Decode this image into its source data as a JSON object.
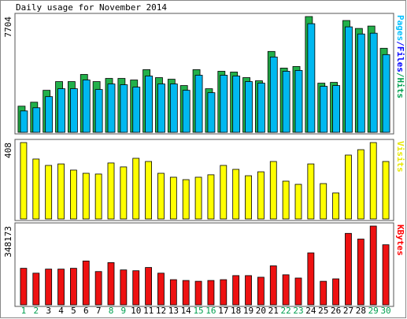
{
  "chart_data": {
    "type": "bar",
    "title": "Daily usage for November 2014",
    "categories": [
      "1",
      "2",
      "3",
      "4",
      "5",
      "6",
      "7",
      "8",
      "9",
      "10",
      "11",
      "12",
      "13",
      "14",
      "15",
      "16",
      "17",
      "18",
      "19",
      "20",
      "21",
      "22",
      "23",
      "24",
      "25",
      "26",
      "27",
      "28",
      "29",
      "30"
    ],
    "category_colors": [
      "#00a050",
      "#00a050",
      "#000000",
      "#000000",
      "#000000",
      "#000000",
      "#000000",
      "#00a050",
      "#00a050",
      "#000000",
      "#000000",
      "#000000",
      "#000000",
      "#000000",
      "#00a050",
      "#00a050",
      "#000000",
      "#000000",
      "#000000",
      "#000000",
      "#000000",
      "#00a050",
      "#00a050",
      "#000000",
      "#000000",
      "#000000",
      "#000000",
      "#000000",
      "#00a050",
      "#00a050"
    ],
    "panels": [
      {
        "ylim": [
          0,
          7704
        ],
        "yticks": [
          7704
        ],
        "side_label": [
          {
            "text": "Pages",
            "color": "#00c0ff"
          },
          {
            "text": "/Files",
            "color": "#0000ff"
          },
          {
            "text": "/Hits",
            "color": "#00a050"
          }
        ],
        "series": [
          {
            "name": "Hits",
            "color": "#22b04a",
            "values": [
              1741,
              2005,
              2797,
              3377,
              3377,
              3852,
              3377,
              3588,
              3588,
              3483,
              4169,
              3641,
              3535,
              3113,
              4169,
              2902,
              4063,
              4010,
              3641,
              3430,
              5382,
              4274,
              4380,
              7704,
              3272,
              3324,
              7440,
              6912,
              7071,
              5593
            ]
          },
          {
            "name": "Pages",
            "color": "#00b8f0",
            "values": [
              1425,
              1636,
              2375,
              2902,
              2902,
              3483,
              2850,
              3219,
              3166,
              3008,
              3747,
              3219,
              3219,
              2797,
              3799,
              2639,
              3799,
              3747,
              3377,
              3272,
              5013,
              4063,
              4116,
              7229,
              3061,
              3113,
              7018,
              6543,
              6596,
              5171
            ]
          }
        ]
      },
      {
        "ylim": [
          0,
          408
        ],
        "yticks": [
          408
        ],
        "side_label": [
          {
            "text": "Visits",
            "color": "#e8e800"
          }
        ],
        "series": [
          {
            "name": "Visits",
            "color": "#ffff00",
            "values": [
              408,
              320,
              286,
              294,
              261,
              244,
              240,
              299,
              278,
              324,
              307,
              244,
              223,
              210,
              223,
              236,
              286,
              265,
              231,
              252,
              307,
              202,
              185,
              294,
              189,
              139,
              341,
              370,
              408,
              307
            ]
          }
        ]
      },
      {
        "ylim": [
          0,
          348173
        ],
        "yticks": [
          348173
        ],
        "side_label": [
          {
            "text": "KBytes",
            "color": "#ff0000"
          }
        ],
        "series": [
          {
            "name": "KBytes",
            "color": "#ee1111",
            "values": [
              161520,
              139980,
              157930,
              157930,
              161520,
              193810,
              147150,
              186630,
              154330,
              150740,
              165100,
              139980,
              111260,
              107670,
              104080,
              107670,
              111260,
              129210,
              129210,
              122030,
              172280,
              132800,
              118440,
              229700,
              104080,
              114850,
              315840,
              290710,
              348173,
              265590
            ]
          }
        ]
      }
    ]
  }
}
